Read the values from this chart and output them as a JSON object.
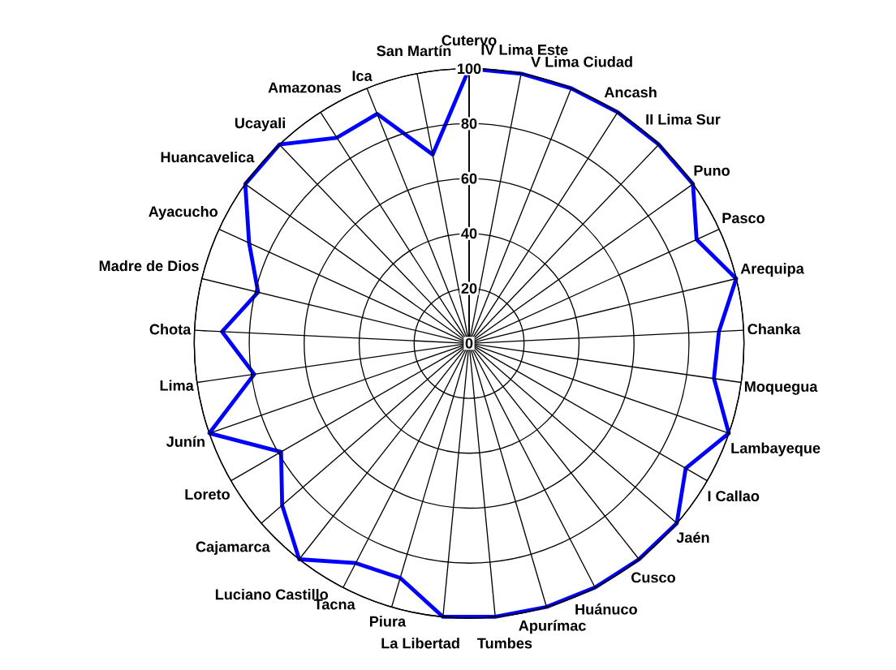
{
  "chart_data": {
    "type": "radar",
    "categories": [
      "Cutervo",
      "IV Lima Este",
      "V Lima Ciudad",
      "Ancash",
      "II Lima Sur",
      "Puno",
      "Pasco",
      "Arequipa",
      "Chanka",
      "Moquegua",
      "Lambayeque",
      "I Callao",
      "Jaén",
      "Cusco",
      "Huánuco",
      "Apurímac",
      "Tumbes",
      "La Libertad",
      "Piura",
      "Tacna",
      "Luciano Castillo",
      "Cajamarca",
      "Loreto",
      "Junín",
      "Lima",
      "Chota",
      "Madre de Dios",
      "Ayacucho",
      "Huancavelica",
      "Ucayali",
      "Amazonas",
      "Ica",
      "San Martín"
    ],
    "series": [
      {
        "color": "#0000ff",
        "values": [
          100,
          100,
          100,
          100,
          100,
          100,
          91,
          100,
          91,
          90,
          100,
          91,
          100,
          100,
          100,
          100,
          100,
          100,
          89,
          90,
          100,
          90,
          79,
          100,
          79,
          90,
          79,
          88,
          100,
          100,
          89,
          90,
          70
        ]
      }
    ],
    "ylim": [
      0,
      100
    ],
    "yticks": [
      0,
      20,
      40,
      60,
      80,
      100
    ],
    "grid": true
  }
}
